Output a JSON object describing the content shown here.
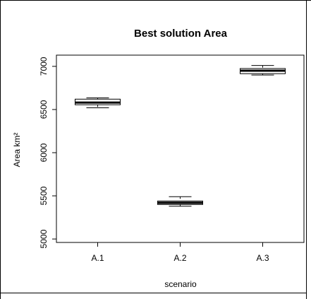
{
  "chart_data": {
    "type": "boxplot",
    "title": "Best solution Area",
    "xlabel": "scenario",
    "ylabel": "Area km²",
    "ylim": [
      4960,
      7130
    ],
    "yticks": [
      5000,
      5500,
      6000,
      6500,
      7000
    ],
    "categories": [
      "A.1",
      "A.2",
      "A.3"
    ],
    "boxes": [
      {
        "category": "A.1",
        "min": 6520,
        "q1": 6555,
        "median": 6580,
        "q3": 6620,
        "max": 6635
      },
      {
        "category": "A.2",
        "min": 5380,
        "q1": 5400,
        "median": 5420,
        "q3": 5440,
        "max": 5490
      },
      {
        "category": "A.3",
        "min": 6900,
        "q1": 6915,
        "median": 6950,
        "q3": 6975,
        "max": 7010
      }
    ]
  }
}
